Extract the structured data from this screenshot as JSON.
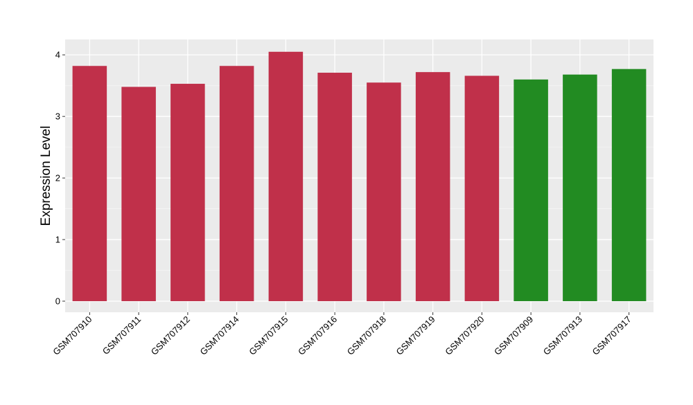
{
  "chart_data": {
    "type": "bar",
    "title": "",
    "xlabel": "",
    "ylabel": "Expression Level",
    "ylim": [
      -0.18,
      4.25
    ],
    "yticks": [
      0,
      1,
      2,
      3,
      4
    ],
    "grid": true,
    "categories": [
      "GSM707910",
      "GSM707911",
      "GSM707912",
      "GSM707914",
      "GSM707915",
      "GSM707916",
      "GSM707918",
      "GSM707919",
      "GSM707920",
      "GSM707909",
      "GSM707913",
      "GSM707917"
    ],
    "values": [
      3.82,
      3.48,
      3.53,
      3.82,
      4.05,
      3.71,
      3.55,
      3.72,
      3.66,
      3.6,
      3.68,
      3.77
    ],
    "group": [
      1,
      1,
      1,
      1,
      1,
      1,
      1,
      1,
      1,
      2,
      2,
      2
    ],
    "colors": {
      "group1": "#C0304A",
      "group2": "#228B22",
      "panel_background": "#EBEBEB",
      "grid_major": "#FFFFFF",
      "grid_minor": "#F5F5F5"
    }
  }
}
